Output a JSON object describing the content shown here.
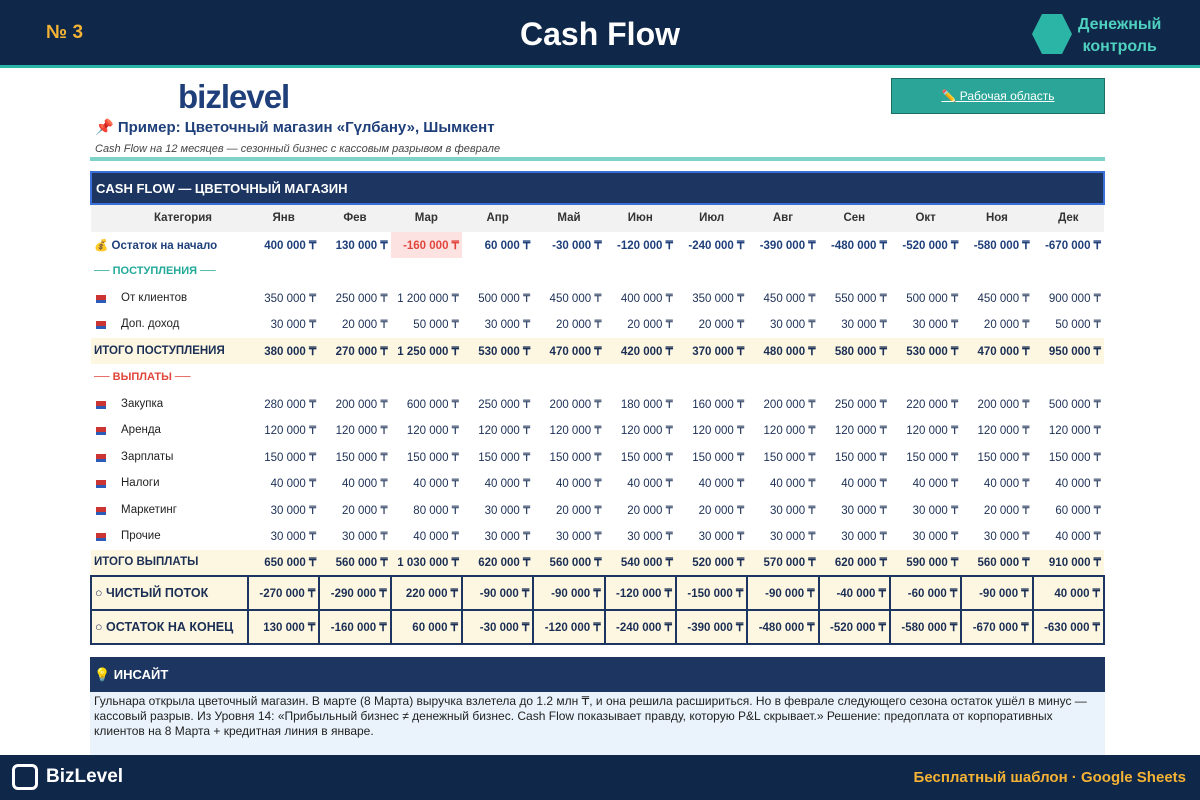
{
  "header": {
    "badge": "№ 3",
    "title": "Cash Flow",
    "brand": [
      "Денежный",
      "контроль"
    ]
  },
  "logo": "bizlevel",
  "button": "✏️ Рабочая область",
  "example": {
    "title": "📌 Пример: Цветочный магазин «Гүлбану», Шымкент",
    "subtitle": "Cash Flow на 12 месяцев — сезонный бизнес с кассовым разрывом в феврале"
  },
  "table": {
    "title": "CASH FLOW — ЦВЕТОЧНЫЙ МАГАЗИН",
    "columns": [
      "Категория",
      "Янв",
      "Фев",
      "Мар",
      "Апр",
      "Май",
      "Июн",
      "Июл",
      "Авг",
      "Сен",
      "Окт",
      "Ноя",
      "Дек"
    ],
    "opening_row": {
      "label": "💰 Остаток на начало",
      "cells": [
        "400 000 ₸",
        "130 000 ₸",
        "-160 000 ₸",
        "60 000 ₸",
        "-30 000 ₸",
        "-120 000 ₸",
        "-240 000 ₸",
        "-390 000 ₸",
        "-480 000 ₸",
        "-520 000 ₸",
        "-580 000 ₸",
        "-670 000 ₸"
      ]
    },
    "inflows": {
      "heading": "── ПОСТУПЛЕНИЯ ──",
      "rows": [
        {
          "label": "От клиентов",
          "cells": [
            "350 000 ₸",
            "250 000 ₸",
            "1 200 000 ₸",
            "500 000 ₸",
            "450 000 ₸",
            "400 000 ₸",
            "350 000 ₸",
            "450 000 ₸",
            "550 000 ₸",
            "500 000 ₸",
            "450 000 ₸",
            "900 000 ₸"
          ]
        },
        {
          "label": "Доп. доход",
          "cells": [
            "30 000 ₸",
            "20 000 ₸",
            "50 000 ₸",
            "30 000 ₸",
            "20 000 ₸",
            "20 000 ₸",
            "20 000 ₸",
            "30 000 ₸",
            "30 000 ₸",
            "30 000 ₸",
            "20 000 ₸",
            "50 000 ₸"
          ]
        }
      ],
      "total": {
        "label": "ИТОГО ПОСТУПЛЕНИЯ",
        "cells": [
          "380 000 ₸",
          "270 000 ₸",
          "1 250 000 ₸",
          "530 000 ₸",
          "470 000 ₸",
          "420 000 ₸",
          "370 000 ₸",
          "480 000 ₸",
          "580 000 ₸",
          "530 000 ₸",
          "470 000 ₸",
          "950 000 ₸"
        ]
      }
    },
    "outflows": {
      "heading": "── ВЫПЛАТЫ ──",
      "rows": [
        {
          "label": "Закупка",
          "cells": [
            "280 000 ₸",
            "200 000 ₸",
            "600 000 ₸",
            "250 000 ₸",
            "200 000 ₸",
            "180 000 ₸",
            "160 000 ₸",
            "200 000 ₸",
            "250 000 ₸",
            "220 000 ₸",
            "200 000 ₸",
            "500 000 ₸"
          ]
        },
        {
          "label": "Аренда",
          "cells": [
            "120 000 ₸",
            "120 000 ₸",
            "120 000 ₸",
            "120 000 ₸",
            "120 000 ₸",
            "120 000 ₸",
            "120 000 ₸",
            "120 000 ₸",
            "120 000 ₸",
            "120 000 ₸",
            "120 000 ₸",
            "120 000 ₸"
          ]
        },
        {
          "label": "Зарплаты",
          "cells": [
            "150 000 ₸",
            "150 000 ₸",
            "150 000 ₸",
            "150 000 ₸",
            "150 000 ₸",
            "150 000 ₸",
            "150 000 ₸",
            "150 000 ₸",
            "150 000 ₸",
            "150 000 ₸",
            "150 000 ₸",
            "150 000 ₸"
          ]
        },
        {
          "label": "Налоги",
          "cells": [
            "40 000 ₸",
            "40 000 ₸",
            "40 000 ₸",
            "40 000 ₸",
            "40 000 ₸",
            "40 000 ₸",
            "40 000 ₸",
            "40 000 ₸",
            "40 000 ₸",
            "40 000 ₸",
            "40 000 ₸",
            "40 000 ₸"
          ]
        },
        {
          "label": "Маркетинг",
          "cells": [
            "30 000 ₸",
            "20 000 ₸",
            "80 000 ₸",
            "30 000 ₸",
            "20 000 ₸",
            "20 000 ₸",
            "20 000 ₸",
            "30 000 ₸",
            "30 000 ₸",
            "30 000 ₸",
            "20 000 ₸",
            "60 000 ₸"
          ]
        },
        {
          "label": "Прочие",
          "cells": [
            "30 000 ₸",
            "30 000 ₸",
            "40 000 ₸",
            "30 000 ₸",
            "30 000 ₸",
            "30 000 ₸",
            "30 000 ₸",
            "30 000 ₸",
            "30 000 ₸",
            "30 000 ₸",
            "30 000 ₸",
            "40 000 ₸"
          ]
        }
      ],
      "total": {
        "label": "ИТОГО ВЫПЛАТЫ",
        "cells": [
          "650 000 ₸",
          "560 000 ₸",
          "1 030 000 ₸",
          "620 000 ₸",
          "560 000 ₸",
          "540 000 ₸",
          "520 000 ₸",
          "570 000 ₸",
          "620 000 ₸",
          "590 000 ₸",
          "560 000 ₸",
          "910 000 ₸"
        ]
      }
    },
    "net_row": {
      "label": "○ ЧИСТЫЙ ПОТОК",
      "cells": [
        "-270 000 ₸",
        "-290 000 ₸",
        "220 000 ₸",
        "-90 000 ₸",
        "-90 000 ₸",
        "-120 000 ₸",
        "-150 000 ₸",
        "-90 000 ₸",
        "-40 000 ₸",
        "-60 000 ₸",
        "-90 000 ₸",
        "40 000 ₸"
      ]
    },
    "closing_row": {
      "label": "○ ОСТАТОК НА КОНЕЦ",
      "cells": [
        "130 000 ₸",
        "-160 000 ₸",
        "60 000 ₸",
        "-30 000 ₸",
        "-120 000 ₸",
        "-240 000 ₸",
        "-390 000 ₸",
        "-480 000 ₸",
        "-520 000 ₸",
        "-580 000 ₸",
        "-670 000 ₸",
        "-630 000 ₸"
      ]
    }
  },
  "insight": {
    "title": "💡 ИНСАЙТ",
    "text": "Гульнара открыла цветочный магазин. В марте (8 Марта) выручка взлетела до 1.2 млн ₸, и она решила расшириться. Но в феврале следующего сезона остаток ушёл в минус — кассовый разрыв. Из Уровня 14: «Прибыльный бизнес ≠ денежный бизнес. Cash Flow показывает правду, которую P&L скрывает.» Решение: предоплата от корпоративных клиентов на 8 Марта + кредитная линия в январе."
  },
  "footer": {
    "brand": "BizLevel",
    "note": "Бесплатный шаблон · Google Sheets"
  }
}
